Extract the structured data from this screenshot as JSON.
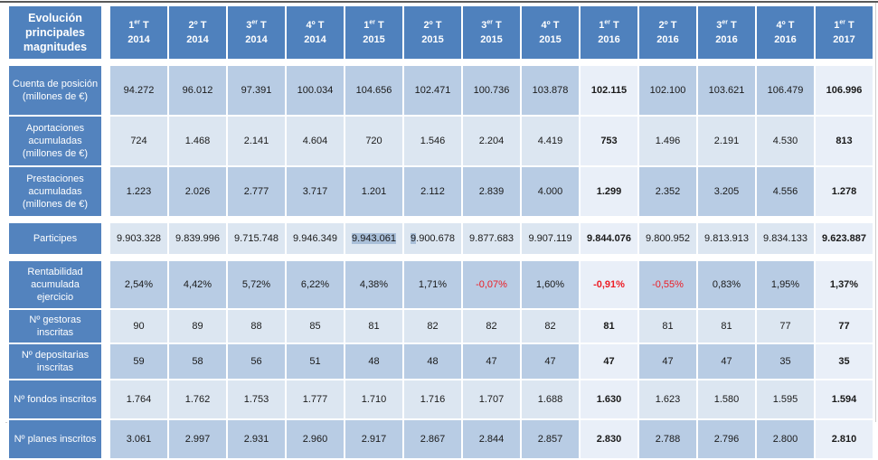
{
  "chart_data": {
    "type": "table",
    "title": "Evolución principales magnitudes",
    "columns": [
      {
        "label": "1er T 2014",
        "base": "1",
        "sup": "er",
        "year": "2014",
        "highlight": false
      },
      {
        "label": "2º T 2014",
        "base": "2º",
        "sup": "",
        "year": "2014",
        "highlight": false
      },
      {
        "label": "3er T 2014",
        "base": "3",
        "sup": "er",
        "year": "2014",
        "highlight": false
      },
      {
        "label": "4º T 2014",
        "base": "4º",
        "sup": "",
        "year": "2014",
        "highlight": false
      },
      {
        "label": "1er T 2015",
        "base": "1",
        "sup": "er",
        "year": "2015",
        "highlight": false
      },
      {
        "label": "2º T 2015",
        "base": "2º",
        "sup": "",
        "year": "2015",
        "highlight": false
      },
      {
        "label": "3er T 2015",
        "base": "3",
        "sup": "er",
        "year": "2015",
        "highlight": false
      },
      {
        "label": "4º T 2015",
        "base": "4º",
        "sup": "",
        "year": "2015",
        "highlight": false
      },
      {
        "label": "1er T 2016",
        "base": "1",
        "sup": "er",
        "year": "2016",
        "highlight": true
      },
      {
        "label": "2º T 2016",
        "base": "2º",
        "sup": "",
        "year": "2016",
        "highlight": false
      },
      {
        "label": "3er T 2016",
        "base": "3",
        "sup": "er",
        "year": "2016",
        "highlight": false
      },
      {
        "label": "4º T 2016",
        "base": "4º",
        "sup": "",
        "year": "2016",
        "highlight": false
      },
      {
        "label": "1er T 2017",
        "base": "1",
        "sup": "er",
        "year": "2017",
        "highlight": true
      }
    ],
    "rows": [
      {
        "id": "cuenta-posicion",
        "label": "Cuenta de posición (millones de €)",
        "shade": "medium",
        "values": [
          "94.272",
          "96.012",
          "97.391",
          "100.034",
          "104.656",
          "102.471",
          "100.736",
          "103.878",
          "102.115",
          "102.100",
          "103.621",
          "106.479",
          "106.996"
        ]
      },
      {
        "id": "aportaciones-acumuladas",
        "label": "Aportaciones acumuladas (millones de €)",
        "shade": "light",
        "values": [
          "724",
          "1.468",
          "2.141",
          "4.604",
          "720",
          "1.546",
          "2.204",
          "4.419",
          "753",
          "1.496",
          "2.191",
          "4.530",
          "813"
        ]
      },
      {
        "id": "prestaciones-acumuladas",
        "label": "Prestaciones acumuladas (millones de €)",
        "shade": "medium",
        "values": [
          "1.223",
          "2.026",
          "2.777",
          "3.717",
          "1.201",
          "2.112",
          "2.839",
          "4.000",
          "1.299",
          "2.352",
          "3.205",
          "4.556",
          "1.278"
        ]
      },
      {
        "id": "participes",
        "label": "Participes",
        "shade": "light",
        "values": [
          "9.903.328",
          "9.839.996",
          "9.715.748",
          "9.946.349",
          "9.943.061",
          "9.900.678",
          "9.877.683",
          "9.907.119",
          "9.844.076",
          "9.800.952",
          "9.813.913",
          "9.834.133",
          "9.623.887"
        ],
        "selection": {
          "full": [
            4
          ],
          "partial_prefix": [
            [
              5,
              1
            ]
          ]
        }
      },
      {
        "id": "rentabilidad",
        "label": "Rentabilidad acumulada ejercicio",
        "shade": "medium",
        "values": [
          "2,54%",
          "4,42%",
          "5,72%",
          "6,22%",
          "4,38%",
          "1,71%",
          "-0,07%",
          "1,60%",
          "-0,91%",
          "-0,55%",
          "0,83%",
          "1,95%",
          "1,37%"
        ]
      },
      {
        "id": "gestoras-inscritas",
        "label": "Nº gestoras inscritas",
        "shade": "light",
        "values": [
          "90",
          "89",
          "88",
          "85",
          "81",
          "82",
          "82",
          "82",
          "81",
          "81",
          "81",
          "77",
          "77"
        ]
      },
      {
        "id": "depositarias-inscritas",
        "label": "Nº depositarias inscritas",
        "shade": "medium",
        "values": [
          "59",
          "58",
          "56",
          "51",
          "48",
          "48",
          "47",
          "47",
          "47",
          "47",
          "47",
          "35",
          "35"
        ]
      },
      {
        "id": "fondos-inscritos",
        "label": "Nº fondos inscritos",
        "shade": "light",
        "values": [
          "1.764",
          "1.762",
          "1.753",
          "1.777",
          "1.710",
          "1.716",
          "1.707",
          "1.688",
          "1.630",
          "1.623",
          "1.580",
          "1.595",
          "1.594"
        ]
      },
      {
        "id": "planes-inscritos",
        "label": "Nº planes inscritos",
        "shade": "medium",
        "values": [
          "3.061",
          "2.997",
          "2.931",
          "2.960",
          "2.917",
          "2.867",
          "2.844",
          "2.857",
          "2.830",
          "2.788",
          "2.796",
          "2.800",
          "2.810"
        ]
      }
    ]
  },
  "colors": {
    "header_blue": "#4f81bd",
    "label_blue": "#5383be",
    "cell_medium": "#b8cce4",
    "cell_light": "#dce6f1",
    "cell_highlight": "#e9eff8",
    "selection_highlight": "#a9bfd9",
    "negative_red": "#ed1c24",
    "text": "#1a1a1a",
    "rule_dark": "#595959",
    "rule_light": "#cfcfcf"
  }
}
